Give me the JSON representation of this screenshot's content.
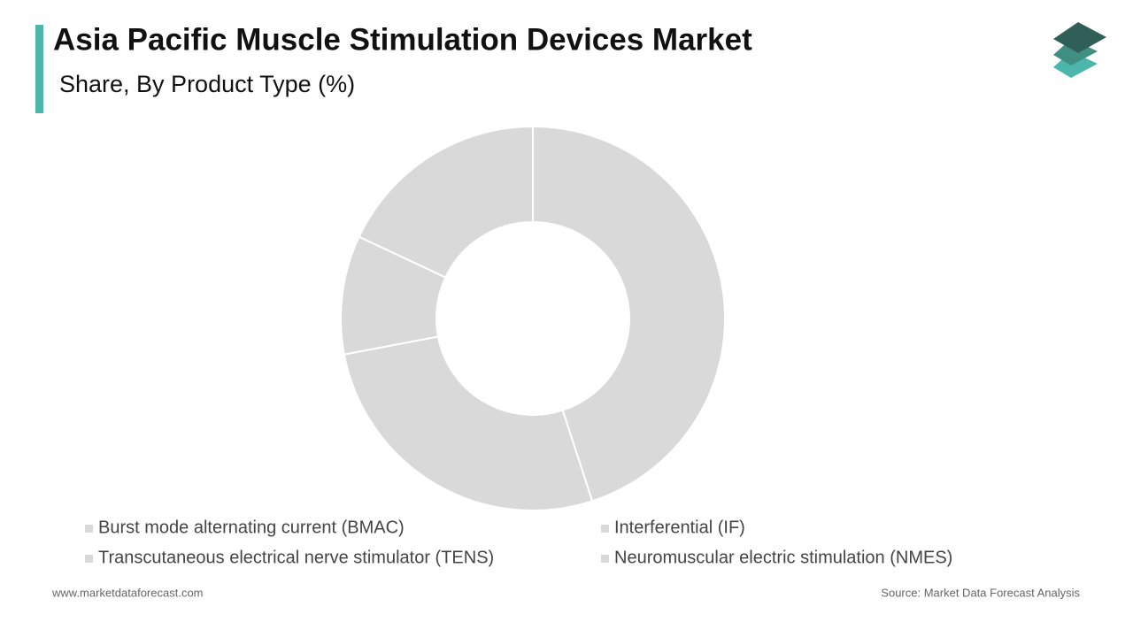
{
  "chart_data": {
    "type": "pie",
    "donut": true,
    "title": "Asia Pacific Muscle Stimulation Devices Market",
    "subtitle": "Share, By Product Type (%)",
    "categories": [
      "Burst mode alternating current (BMAC)",
      "Interferential (IF)",
      "Transcutaneous electrical nerve stimulator (TENS)",
      "Neuromuscular electric stimulation (NMES)"
    ],
    "values": [
      45,
      27,
      10,
      18
    ],
    "colors": [
      "#d9d9d9",
      "#d9d9d9",
      "#d9d9d9",
      "#d9d9d9"
    ],
    "legend": "bottom"
  },
  "footer": {
    "website": "www.marketdataforecast.com",
    "source": "Source: Market Data Forecast Analysis"
  }
}
